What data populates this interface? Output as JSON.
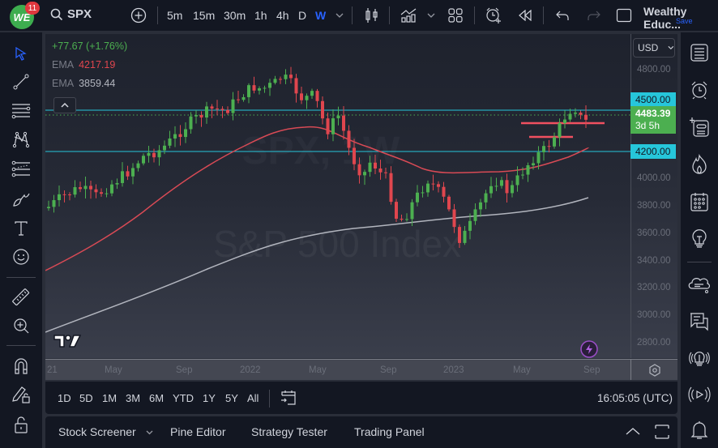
{
  "topbar": {
    "notification_count": "11",
    "logo_text": "WE",
    "symbol": "SPX",
    "intervals": [
      "5m",
      "15m",
      "30m",
      "1h",
      "4h",
      "D",
      "W"
    ],
    "active_interval": "W",
    "profile_name": "Wealthy Educ...",
    "save_label": "Save"
  },
  "legend": {
    "change": "+77.67 (+1.76%)",
    "ema1_label": "EMA",
    "ema1_value": "4217.19",
    "ema2_label": "EMA",
    "ema2_value": "3859.44"
  },
  "price_axis": {
    "currency": "USD",
    "ticks": [
      "4800.00",
      "4000.00",
      "3800.00",
      "3600.00",
      "3400.00",
      "3200.00",
      "3000.00",
      "2800.00"
    ],
    "label_4500": "4500.00",
    "current_price": "4483.39",
    "countdown": "3d 5h",
    "label_4200": "4200.00"
  },
  "time_axis": {
    "ticks": [
      "21",
      "May",
      "Sep",
      "2022",
      "May",
      "Sep",
      "2023",
      "May",
      "Sep"
    ]
  },
  "watermark": {
    "symbol": "SPX, 1W",
    "name": "S&P 500 Index"
  },
  "range_bar": {
    "ranges": [
      "1D",
      "5D",
      "1M",
      "3M",
      "6M",
      "YTD",
      "1Y",
      "5Y",
      "All"
    ],
    "clock": "16:05:05 (UTC)"
  },
  "panel_bar": {
    "tabs": [
      "Stock Screener",
      "Pine Editor",
      "Strategy Tester",
      "Trading Panel"
    ]
  },
  "chart_data": {
    "type": "candlestick",
    "title": "SPX, 1W — S&P 500 Index",
    "price_range": [
      2700,
      4900
    ],
    "horizontal_lines": [
      {
        "price": 4500,
        "color": "#26c6da"
      },
      {
        "price": 4200,
        "color": "#26c6da"
      }
    ],
    "indicators": [
      {
        "name": "EMA",
        "value": 4217.19,
        "color": "#e0464e"
      },
      {
        "name": "EMA",
        "value": 3859.44,
        "color": "#b2b5be"
      }
    ],
    "last_price": 4483.39,
    "change": 77.67,
    "change_pct": 1.76,
    "colors": {
      "up": "#4caf50",
      "down": "#e0464e"
    }
  }
}
